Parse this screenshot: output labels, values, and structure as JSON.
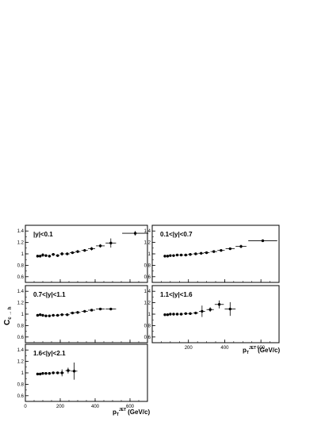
{
  "figure": {
    "ylabel": "C",
    "ylabel_sub": "c → h",
    "xlabel": "p",
    "xlabel_sub": "T",
    "xlabel_sup": "JET",
    "xlabel_unit": "(GeV/c)"
  },
  "chart_data": [
    {
      "type": "scatter",
      "title": "|y|<0.1",
      "xlim": [
        0,
        700
      ],
      "ylim": [
        0.5,
        1.5
      ],
      "xticks": [],
      "yticks": [
        "1.4",
        "1.2",
        "1",
        "0.8",
        "0.6"
      ],
      "points": [
        {
          "x": 70,
          "y": 0.96,
          "xerr": 5,
          "yerr": 0.02
        },
        {
          "x": 85,
          "y": 0.96,
          "xerr": 6,
          "yerr": 0.02
        },
        {
          "x": 100,
          "y": 0.98,
          "xerr": 7,
          "yerr": 0.03
        },
        {
          "x": 118,
          "y": 0.97,
          "xerr": 8,
          "yerr": 0.02
        },
        {
          "x": 138,
          "y": 0.96,
          "xerr": 9,
          "yerr": 0.02
        },
        {
          "x": 160,
          "y": 0.99,
          "xerr": 10,
          "yerr": 0.02
        },
        {
          "x": 185,
          "y": 0.97,
          "xerr": 11,
          "yerr": 0.02
        },
        {
          "x": 210,
          "y": 1.0,
          "xerr": 12,
          "yerr": 0.03
        },
        {
          "x": 240,
          "y": 1.0,
          "xerr": 14,
          "yerr": 0.02
        },
        {
          "x": 270,
          "y": 1.02,
          "xerr": 15,
          "yerr": 0.02
        },
        {
          "x": 300,
          "y": 1.04,
          "xerr": 16,
          "yerr": 0.02
        },
        {
          "x": 340,
          "y": 1.06,
          "xerr": 18,
          "yerr": 0.02
        },
        {
          "x": 380,
          "y": 1.09,
          "xerr": 20,
          "yerr": 0.03
        },
        {
          "x": 430,
          "y": 1.14,
          "xerr": 25,
          "yerr": 0.03
        },
        {
          "x": 490,
          "y": 1.19,
          "xerr": 30,
          "yerr": 0.08
        },
        {
          "x": 630,
          "y": 1.36,
          "xerr": 75,
          "yerr": 0.04
        }
      ]
    },
    {
      "type": "scatter",
      "title": "0.1<|y|<0.7",
      "xlim": [
        0,
        700
      ],
      "ylim": [
        0.5,
        1.5
      ],
      "xticks": [],
      "yticks": [
        "1.4",
        "1.2",
        "1",
        "0.8",
        "0.6"
      ],
      "points": [
        {
          "x": 70,
          "y": 0.96,
          "xerr": 5,
          "yerr": 0.01
        },
        {
          "x": 85,
          "y": 0.96,
          "xerr": 6,
          "yerr": 0.01
        },
        {
          "x": 100,
          "y": 0.97,
          "xerr": 7,
          "yerr": 0.01
        },
        {
          "x": 118,
          "y": 0.97,
          "xerr": 8,
          "yerr": 0.01
        },
        {
          "x": 138,
          "y": 0.98,
          "xerr": 9,
          "yerr": 0.01
        },
        {
          "x": 160,
          "y": 0.98,
          "xerr": 10,
          "yerr": 0.01
        },
        {
          "x": 185,
          "y": 0.98,
          "xerr": 11,
          "yerr": 0.01
        },
        {
          "x": 210,
          "y": 0.99,
          "xerr": 12,
          "yerr": 0.01
        },
        {
          "x": 240,
          "y": 1.0,
          "xerr": 14,
          "yerr": 0.01
        },
        {
          "x": 270,
          "y": 1.01,
          "xerr": 15,
          "yerr": 0.01
        },
        {
          "x": 300,
          "y": 1.02,
          "xerr": 16,
          "yerr": 0.01
        },
        {
          "x": 340,
          "y": 1.04,
          "xerr": 18,
          "yerr": 0.01
        },
        {
          "x": 380,
          "y": 1.06,
          "xerr": 20,
          "yerr": 0.01
        },
        {
          "x": 430,
          "y": 1.09,
          "xerr": 25,
          "yerr": 0.02
        },
        {
          "x": 490,
          "y": 1.13,
          "xerr": 30,
          "yerr": 0.03
        },
        {
          "x": 610,
          "y": 1.23,
          "xerr": 80,
          "yerr": 0.02
        }
      ]
    },
    {
      "type": "scatter",
      "title": "0.7<|y|<1.1",
      "xlim": [
        0,
        700
      ],
      "ylim": [
        0.5,
        1.5
      ],
      "xticks": [],
      "yticks": [
        "1.4",
        "1.2",
        "1",
        "0.8",
        "0.6"
      ],
      "points": [
        {
          "x": 70,
          "y": 0.98,
          "xerr": 5,
          "yerr": 0.01
        },
        {
          "x": 85,
          "y": 0.99,
          "xerr": 6,
          "yerr": 0.01
        },
        {
          "x": 100,
          "y": 0.98,
          "xerr": 7,
          "yerr": 0.01
        },
        {
          "x": 118,
          "y": 0.97,
          "xerr": 8,
          "yerr": 0.01
        },
        {
          "x": 138,
          "y": 0.97,
          "xerr": 9,
          "yerr": 0.01
        },
        {
          "x": 160,
          "y": 0.98,
          "xerr": 10,
          "yerr": 0.01
        },
        {
          "x": 185,
          "y": 0.98,
          "xerr": 11,
          "yerr": 0.01
        },
        {
          "x": 210,
          "y": 0.99,
          "xerr": 12,
          "yerr": 0.01
        },
        {
          "x": 240,
          "y": 0.99,
          "xerr": 14,
          "yerr": 0.01
        },
        {
          "x": 270,
          "y": 1.02,
          "xerr": 15,
          "yerr": 0.01
        },
        {
          "x": 300,
          "y": 1.03,
          "xerr": 16,
          "yerr": 0.01
        },
        {
          "x": 340,
          "y": 1.05,
          "xerr": 18,
          "yerr": 0.01
        },
        {
          "x": 380,
          "y": 1.07,
          "xerr": 20,
          "yerr": 0.02
        },
        {
          "x": 430,
          "y": 1.09,
          "xerr": 25,
          "yerr": 0.02
        },
        {
          "x": 490,
          "y": 1.09,
          "xerr": 30,
          "yerr": 0.02
        }
      ]
    },
    {
      "type": "scatter",
      "title": "1.1<|y|<1.6",
      "xlim": [
        0,
        700
      ],
      "ylim": [
        0.5,
        1.5
      ],
      "xticks": [
        "200",
        "400",
        "600"
      ],
      "yticks": [
        "1.4",
        "1.2",
        "1",
        "0.8",
        "0.6"
      ],
      "points": [
        {
          "x": 70,
          "y": 0.99,
          "xerr": 5,
          "yerr": 0.01
        },
        {
          "x": 85,
          "y": 0.99,
          "xerr": 6,
          "yerr": 0.01
        },
        {
          "x": 100,
          "y": 1.0,
          "xerr": 7,
          "yerr": 0.01
        },
        {
          "x": 118,
          "y": 1.0,
          "xerr": 8,
          "yerr": 0.01
        },
        {
          "x": 138,
          "y": 1.0,
          "xerr": 9,
          "yerr": 0.01
        },
        {
          "x": 160,
          "y": 1.0,
          "xerr": 10,
          "yerr": 0.01
        },
        {
          "x": 185,
          "y": 1.01,
          "xerr": 11,
          "yerr": 0.01
        },
        {
          "x": 210,
          "y": 1.01,
          "xerr": 12,
          "yerr": 0.02
        },
        {
          "x": 240,
          "y": 1.02,
          "xerr": 14,
          "yerr": 0.02
        },
        {
          "x": 275,
          "y": 1.05,
          "xerr": 17,
          "yerr": 0.1
        },
        {
          "x": 320,
          "y": 1.08,
          "xerr": 20,
          "yerr": 0.04
        },
        {
          "x": 370,
          "y": 1.17,
          "xerr": 25,
          "yerr": 0.07
        },
        {
          "x": 430,
          "y": 1.09,
          "xerr": 30,
          "yerr": 0.12
        }
      ]
    },
    {
      "type": "scatter",
      "title": "1.6<|y|<2.1",
      "xlim": [
        0,
        700
      ],
      "ylim": [
        0.5,
        1.5
      ],
      "xticks": [
        "0",
        "200",
        "400",
        "600"
      ],
      "yticks": [
        "1.4",
        "1.2",
        "1",
        "0.8",
        "0.6"
      ],
      "points": [
        {
          "x": 70,
          "y": 0.98,
          "xerr": 5,
          "yerr": 0.01
        },
        {
          "x": 85,
          "y": 0.98,
          "xerr": 6,
          "yerr": 0.01
        },
        {
          "x": 100,
          "y": 0.99,
          "xerr": 7,
          "yerr": 0.01
        },
        {
          "x": 118,
          "y": 0.99,
          "xerr": 8,
          "yerr": 0.01
        },
        {
          "x": 138,
          "y": 0.99,
          "xerr": 9,
          "yerr": 0.01
        },
        {
          "x": 160,
          "y": 1.0,
          "xerr": 10,
          "yerr": 0.02
        },
        {
          "x": 185,
          "y": 1.0,
          "xerr": 11,
          "yerr": 0.02
        },
        {
          "x": 210,
          "y": 1.0,
          "xerr": 12,
          "yerr": 0.06
        },
        {
          "x": 245,
          "y": 1.04,
          "xerr": 15,
          "yerr": 0.05
        },
        {
          "x": 280,
          "y": 1.03,
          "xerr": 18,
          "yerr": 0.15
        }
      ]
    }
  ]
}
